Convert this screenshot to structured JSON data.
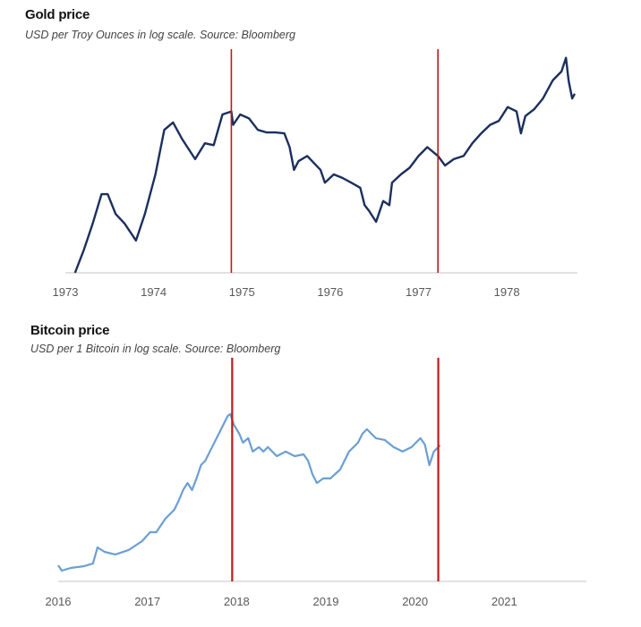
{
  "colors": {
    "gold_line": "#1b2f5e",
    "bitcoin_line": "#6a9fd4",
    "marker_line": "#c0191c",
    "axis": "#d9d9d9"
  },
  "chart_data": [
    {
      "type": "line",
      "title": "Gold price",
      "subtitle": "USD per Troy Ounces in log scale. Source: Bloomberg",
      "xlabel": "",
      "ylabel": "",
      "y_scale": "log",
      "xlim": [
        1973,
        1978.8
      ],
      "ylim": [
        65,
        298
      ],
      "grid": false,
      "y_axis_labels_shown": false,
      "x_ticks": [
        "1973",
        "1974",
        "1975",
        "1976",
        "1977",
        "1978"
      ],
      "vertical_markers": [
        1974.88,
        1977.22
      ],
      "series": [
        {
          "x": [
            1973.11,
            1973.21,
            1973.31,
            1973.41,
            1973.48,
            1973.57,
            1973.67,
            1973.8,
            1973.9,
            1974.02,
            1974.12,
            1974.22,
            1974.32,
            1974.47,
            1974.58,
            1974.68,
            1974.78,
            1974.88,
            1974.9,
            1974.98,
            1975.08,
            1975.18,
            1975.28,
            1975.38,
            1975.48,
            1975.54,
            1975.59,
            1975.64,
            1975.74,
            1975.89,
            1975.94,
            1976.04,
            1976.14,
            1976.24,
            1976.34,
            1976.39,
            1976.44,
            1976.52,
            1976.6,
            1976.67,
            1976.7,
            1976.8,
            1976.9,
            1977.0,
            1977.1,
            1977.22,
            1977.3,
            1977.4,
            1977.51,
            1977.61,
            1977.71,
            1977.81,
            1977.91,
            1978.01,
            1978.11,
            1978.16,
            1978.21,
            1978.31,
            1978.41,
            1978.52,
            1978.62,
            1978.67,
            1978.7,
            1978.74,
            1978.77
          ],
          "y": [
            65,
            76,
            91,
            111,
            111,
            97,
            91,
            81,
            97,
            127,
            172,
            181,
            162,
            141,
            157,
            155,
            191,
            195,
            178,
            191,
            186,
            172,
            169,
            169,
            168,
            153,
            131,
            139,
            144,
            131,
            120,
            127,
            124,
            120,
            116,
            103,
            99,
            92,
            106,
            103,
            120,
            127,
            133,
            144,
            153,
            144,
            135,
            141,
            144,
            157,
            168,
            178,
            183,
            201,
            195,
            168,
            189,
            198,
            213,
            241,
            256,
            281,
            241,
            213,
            220
          ]
        }
      ]
    },
    {
      "type": "line",
      "title": "Bitcoin price",
      "subtitle": "USD per 1 Bitcoin in log scale. Source: Bloomberg",
      "xlabel": "",
      "ylabel": "",
      "y_scale": "log",
      "xlim": [
        2016,
        2021.92
      ],
      "ylim": [
        287,
        78000
      ],
      "grid": false,
      "y_axis_labels_shown": false,
      "x_ticks": [
        "2016",
        "2017",
        "2018",
        "2019",
        "2020",
        "2021"
      ],
      "vertical_markers": [
        2017.95,
        2020.26
      ],
      "series": [
        {
          "x": [
            2016.0,
            2016.04,
            2016.14,
            2016.29,
            2016.39,
            2016.44,
            2016.52,
            2016.64,
            2016.79,
            2016.94,
            2017.03,
            2017.1,
            2017.2,
            2017.3,
            2017.35,
            2017.4,
            2017.45,
            2017.5,
            2017.55,
            2017.6,
            2017.65,
            2017.7,
            2017.75,
            2017.8,
            2017.85,
            2017.9,
            2017.93,
            2017.97,
            2018.03,
            2018.07,
            2018.13,
            2018.18,
            2018.25,
            2018.3,
            2018.35,
            2018.45,
            2018.55,
            2018.65,
            2018.75,
            2018.8,
            2018.85,
            2018.9,
            2018.97,
            2019.05,
            2019.16,
            2019.26,
            2019.36,
            2019.41,
            2019.46,
            2019.56,
            2019.66,
            2019.76,
            2019.86,
            2019.96,
            2020.06,
            2020.11,
            2020.16,
            2020.21,
            2020.26,
            2020.28
          ],
          "y": [
            430,
            376,
            402,
            420,
            450,
            673,
            602,
            563,
            630,
            787,
            985,
            985,
            1380,
            1724,
            2160,
            2830,
            3380,
            2830,
            3790,
            5290,
            5920,
            7440,
            9290,
            11600,
            14500,
            18200,
            19000,
            14500,
            11600,
            9290,
            10400,
            7440,
            8300,
            7440,
            8300,
            6620,
            7440,
            6620,
            6920,
            5920,
            4210,
            3380,
            3790,
            3790,
            4730,
            7440,
            9290,
            11600,
            13000,
            10400,
            9930,
            8300,
            7440,
            8300,
            10400,
            8860,
            5290,
            7440,
            8300,
            8690
          ]
        }
      ]
    }
  ]
}
